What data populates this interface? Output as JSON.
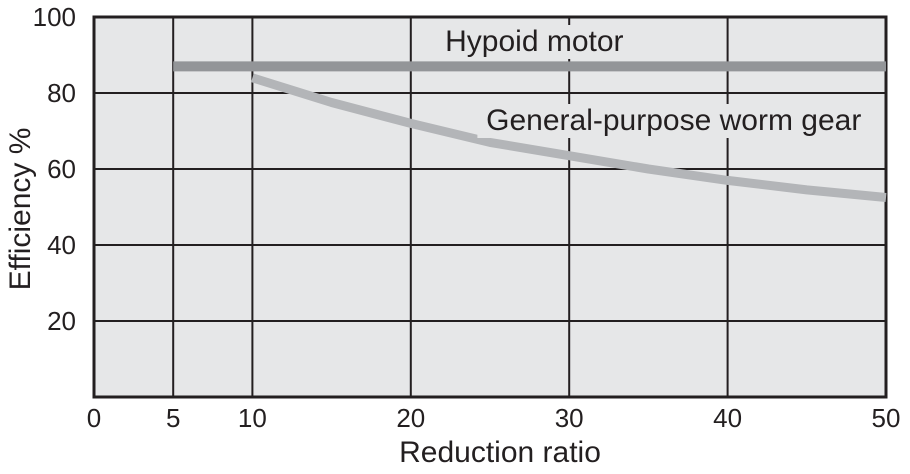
{
  "chart_data": {
    "type": "line",
    "title": "",
    "xlabel": "Reduction ratio",
    "ylabel": "Efficiency %",
    "xlim": [
      0,
      50
    ],
    "ylim": [
      0,
      100
    ],
    "x_ticks": [
      0,
      5,
      10,
      20,
      30,
      40,
      50
    ],
    "y_ticks": [
      20,
      40,
      60,
      80,
      100
    ],
    "grid": true,
    "legend_position": "inline-labels",
    "colors": {
      "plot_background": "#e6e7e8",
      "gridline": "#231f20",
      "border": "#231f20",
      "text": "#231f20",
      "hypoid_line": "#939598",
      "worm_line": "#b3b5b8"
    },
    "series": [
      {
        "name": "Hypoid motor",
        "x": [
          5,
          50
        ],
        "values": [
          87,
          87
        ],
        "color": "#939598",
        "stroke_width": 10,
        "label_pos": {
          "x": 27.8,
          "y": 93.4
        }
      },
      {
        "name": "General-purpose worm gear",
        "x": [
          10,
          15,
          20,
          25,
          30,
          35,
          40,
          45,
          50
        ],
        "values": [
          84,
          77.5,
          72,
          67,
          63.5,
          60,
          57,
          54.5,
          52.5
        ],
        "color": "#b3b5b8",
        "stroke_width": 9,
        "label_pos": {
          "x": 36.6,
          "y": 72.6
        }
      }
    ]
  }
}
